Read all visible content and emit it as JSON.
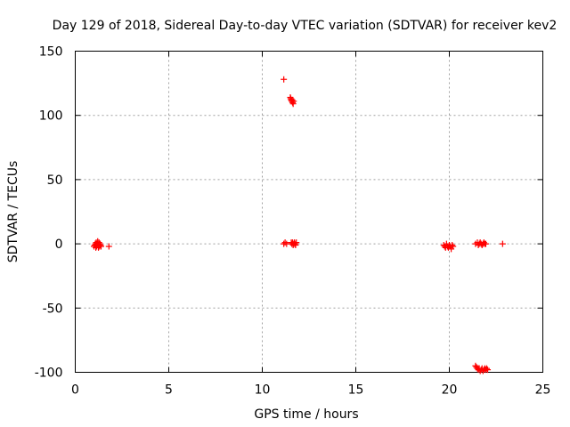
{
  "chart_data": {
    "type": "scatter",
    "title": "Day 129 of 2018, Sidereal Day-to-day VTEC variation (SDTVAR) for receiver kev2",
    "xlabel": "GPS time / hours",
    "ylabel": "SDTVAR / TECUs",
    "xlim": [
      0,
      25
    ],
    "ylim": [
      -100,
      150
    ],
    "xticks": [
      0,
      5,
      10,
      15,
      20,
      25
    ],
    "yticks": [
      -100,
      -50,
      0,
      50,
      100,
      150
    ],
    "grid": true,
    "marker": "+",
    "color": "#ff0000",
    "series": [
      {
        "name": "SDTVAR",
        "points": [
          [
            1.0,
            -2
          ],
          [
            1.04,
            -1
          ],
          [
            1.08,
            0
          ],
          [
            1.1,
            -3
          ],
          [
            1.12,
            1
          ],
          [
            1.15,
            -2
          ],
          [
            1.17,
            0
          ],
          [
            1.2,
            2
          ],
          [
            1.22,
            -1
          ],
          [
            1.24,
            -3
          ],
          [
            1.27,
            1
          ],
          [
            1.3,
            -2
          ],
          [
            1.32,
            0
          ],
          [
            1.35,
            -1
          ],
          [
            1.38,
            -2
          ],
          [
            1.8,
            -2
          ],
          [
            11.15,
            128
          ],
          [
            11.15,
            0
          ],
          [
            11.22,
            1
          ],
          [
            11.3,
            0
          ],
          [
            11.5,
            114
          ],
          [
            11.52,
            113
          ],
          [
            11.55,
            112
          ],
          [
            11.57,
            111
          ],
          [
            11.6,
            112
          ],
          [
            11.62,
            110
          ],
          [
            11.65,
            109
          ],
          [
            11.68,
            111
          ],
          [
            11.55,
            1
          ],
          [
            11.58,
            0
          ],
          [
            11.62,
            1
          ],
          [
            11.65,
            -1
          ],
          [
            11.68,
            0
          ],
          [
            11.72,
            1
          ],
          [
            11.75,
            0
          ],
          [
            11.78,
            -1
          ],
          [
            11.82,
            1
          ],
          [
            19.7,
            -1
          ],
          [
            19.75,
            -2
          ],
          [
            19.8,
            -3
          ],
          [
            19.85,
            0
          ],
          [
            19.9,
            -2
          ],
          [
            19.95,
            -3
          ],
          [
            20.0,
            -1
          ],
          [
            20.05,
            -2
          ],
          [
            20.1,
            -4
          ],
          [
            20.15,
            -1
          ],
          [
            20.2,
            -2
          ],
          [
            21.4,
            0
          ],
          [
            21.5,
            1
          ],
          [
            21.55,
            -1
          ],
          [
            21.6,
            0
          ],
          [
            21.65,
            1
          ],
          [
            21.7,
            0
          ],
          [
            21.75,
            -1
          ],
          [
            21.8,
            0
          ],
          [
            21.85,
            1
          ],
          [
            21.9,
            0
          ],
          [
            21.95,
            0
          ],
          [
            22.85,
            0
          ],
          [
            21.4,
            -95
          ],
          [
            21.45,
            -96
          ],
          [
            21.5,
            -97
          ],
          [
            21.55,
            -98
          ],
          [
            21.6,
            -97
          ],
          [
            21.65,
            -99
          ],
          [
            21.7,
            -98
          ],
          [
            21.75,
            -97
          ],
          [
            21.8,
            -99
          ],
          [
            21.85,
            -98
          ],
          [
            21.9,
            -97
          ],
          [
            21.95,
            -98
          ],
          [
            22.0,
            -97
          ],
          [
            22.05,
            -98
          ]
        ]
      }
    ]
  }
}
